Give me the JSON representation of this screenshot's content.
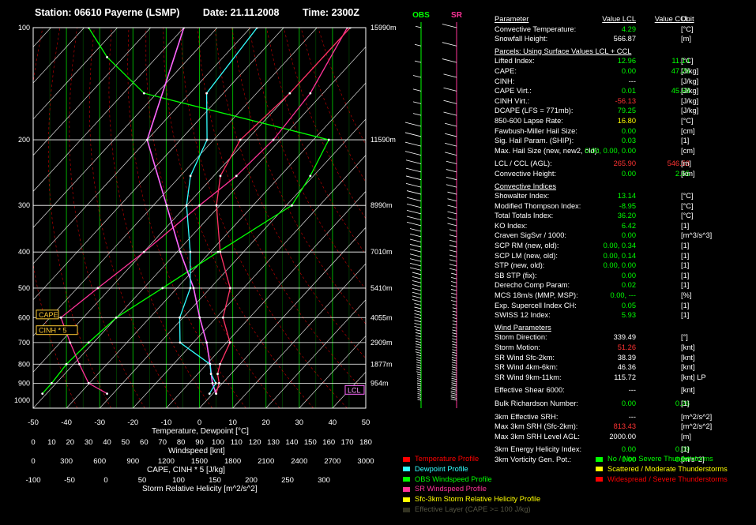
{
  "header": {
    "station": "Station: 06610 Payerne (LSMP)",
    "date": "Date: 21.11.2008",
    "time": "Time: 2300Z"
  },
  "colors": {
    "temperature": "#ff3366",
    "dewpoint": "#33ffff",
    "obs_wind": "#00ff00",
    "sr_wind": "#ff3399",
    "srh": "#ffff00",
    "isotherm": "#00aa00",
    "dry_adiabat": "#ff0000",
    "value_green": "#00ff00",
    "value_red": "#ff3333"
  },
  "chart_data": {
    "type": "skew-t",
    "pressure_levels": [
      100,
      200,
      300,
      400,
      500,
      600,
      700,
      800,
      900,
      1000
    ],
    "pressure_lines": [
      100,
      200,
      300,
      400,
      500,
      600,
      700,
      800,
      900
    ],
    "height_labels": [
      {
        "p": 100,
        "label": "15990m"
      },
      {
        "p": 200,
        "label": "11590m"
      },
      {
        "p": 300,
        "label": "8990m"
      },
      {
        "p": 400,
        "label": "7010m"
      },
      {
        "p": 500,
        "label": "5410m"
      },
      {
        "p": 600,
        "label": "4055m"
      },
      {
        "p": 700,
        "label": "2909m"
      },
      {
        "p": 800,
        "label": "1877m"
      },
      {
        "p": 900,
        "label": "954m"
      }
    ],
    "xlim": [
      -50,
      50
    ],
    "x_ticks": [
      -50,
      -40,
      -30,
      -20,
      -10,
      0,
      10,
      20,
      30,
      40,
      50
    ],
    "xlabel": "Temperature, Dewpoint [°C]",
    "temperature": [
      {
        "p": 960,
        "t": 1
      },
      {
        "p": 900,
        "t": -1
      },
      {
        "p": 850,
        "t": -4
      },
      {
        "p": 800,
        "t": -6
      },
      {
        "p": 700,
        "t": -9
      },
      {
        "p": 600,
        "t": -18
      },
      {
        "p": 500,
        "t": -24
      },
      {
        "p": 400,
        "t": -37
      },
      {
        "p": 300,
        "t": -51
      },
      {
        "p": 250,
        "t": -58
      },
      {
        "p": 200,
        "t": -62
      },
      {
        "p": 150,
        "t": -60
      },
      {
        "p": 100,
        "t": -60
      }
    ],
    "dewpoint": [
      {
        "p": 960,
        "t": -1
      },
      {
        "p": 900,
        "t": -2
      },
      {
        "p": 850,
        "t": -6
      },
      {
        "p": 800,
        "t": -9
      },
      {
        "p": 700,
        "t": -24
      },
      {
        "p": 600,
        "t": -31
      },
      {
        "p": 500,
        "t": -36
      },
      {
        "p": 400,
        "t": -46
      },
      {
        "p": 300,
        "t": -60
      },
      {
        "p": 250,
        "t": -67
      },
      {
        "p": 200,
        "t": -72
      },
      {
        "p": 150,
        "t": -85
      },
      {
        "p": 100,
        "t": -88
      }
    ],
    "parcel": [
      {
        "p": 960,
        "t": 1
      },
      {
        "p": 900,
        "t": -3
      },
      {
        "p": 800,
        "t": -9
      },
      {
        "p": 700,
        "t": -16
      },
      {
        "p": 600,
        "t": -25
      },
      {
        "p": 500,
        "t": -35
      },
      {
        "p": 400,
        "t": -49
      },
      {
        "p": 300,
        "t": -66
      },
      {
        "p": 200,
        "t": -90
      },
      {
        "p": 100,
        "t": -110
      }
    ],
    "obs_windspeed_knt": [
      {
        "p": 960,
        "v": 5
      },
      {
        "p": 900,
        "v": 10
      },
      {
        "p": 800,
        "v": 18
      },
      {
        "p": 700,
        "v": 30
      },
      {
        "p": 600,
        "v": 45
      },
      {
        "p": 500,
        "v": 70
      },
      {
        "p": 400,
        "v": 100
      },
      {
        "p": 300,
        "v": 140
      },
      {
        "p": 250,
        "v": 150
      },
      {
        "p": 200,
        "v": 160
      },
      {
        "p": 150,
        "v": 60
      },
      {
        "p": 120,
        "v": 40
      },
      {
        "p": 100,
        "v": 30
      }
    ],
    "sr_windspeed_knt": [
      {
        "p": 960,
        "v": 40
      },
      {
        "p": 900,
        "v": 30
      },
      {
        "p": 800,
        "v": 25
      },
      {
        "p": 700,
        "v": 20
      },
      {
        "p": 600,
        "v": 15
      },
      {
        "p": 500,
        "v": 35
      },
      {
        "p": 400,
        "v": 60
      },
      {
        "p": 300,
        "v": 90
      },
      {
        "p": 250,
        "v": 110
      },
      {
        "p": 200,
        "v": 130
      },
      {
        "p": 150,
        "v": 150
      },
      {
        "p": 100,
        "v": 170
      }
    ],
    "markers": [
      {
        "p": 590,
        "label": "CAPE"
      },
      {
        "p": 650,
        "label": "CINH * 5"
      },
      {
        "p": 940,
        "label": "LCL"
      }
    ],
    "lower_axes": [
      {
        "title": "Windspeed [knt]",
        "ticks": [
          "0",
          "10",
          "20",
          "30",
          "40",
          "50",
          "60",
          "70",
          "80",
          "90",
          "100",
          "110",
          "120",
          "130",
          "140",
          "150",
          "160",
          "170",
          "180"
        ]
      },
      {
        "title": "CAPE, CINH * 5 [J/kg]",
        "ticks": [
          "0",
          "300",
          "600",
          "900",
          "1200",
          "1500",
          "1800",
          "2100",
          "2400",
          "2700",
          "3000"
        ]
      },
      {
        "title": "Storm Relative Helicity [m^2/s^2]",
        "ticks": [
          "-100",
          "-50",
          "0",
          "50",
          "100",
          "150",
          "200",
          "250",
          "300"
        ]
      }
    ]
  },
  "wind_strip": {
    "obs_label": "OBS",
    "sr_label": "SR"
  },
  "params": {
    "header": {
      "label": "Parameter",
      "v1": "Value LCL",
      "v2": "Value CCL",
      "unit": "Unit"
    },
    "rows": [
      {
        "label": "Convective Temperature:",
        "v1": "4.29",
        "v2": "",
        "unit": "[°C]",
        "c1": "g"
      },
      {
        "label": "Snowfall Height:",
        "v1": "566.87",
        "v2": "",
        "unit": "[m]",
        "c1": "w"
      },
      {
        "section": "Parcels: Using Surface Values LCL + CCL"
      },
      {
        "label": "Lifted Index:",
        "v1": "12.96",
        "v2": "11.14",
        "unit": "[°C]",
        "c1": "g",
        "c2": "g"
      },
      {
        "label": "CAPE:",
        "v1": "0.00",
        "v2": "47.26",
        "unit": "[J/kg]",
        "c1": "g",
        "c2": "g"
      },
      {
        "label": "CINH:",
        "v1": "---",
        "v2": "",
        "unit": "[J/kg]",
        "c1": "w"
      },
      {
        "label": "CAPE Virt.:",
        "v1": "0.01",
        "v2": "45.68",
        "unit": "[J/kg]",
        "c1": "g",
        "c2": "g"
      },
      {
        "label": "CINH Virt.:",
        "v1": "-56.13",
        "v2": "",
        "unit": "[J/kg]",
        "c1": "r"
      },
      {
        "label": "DCAPE (LFS = 771mb):",
        "v1": "79.25",
        "v2": "",
        "unit": "[J/kg]",
        "c1": "g"
      },
      {
        "label": "850-600 Lapse Rate:",
        "v1": "16.80",
        "v2": "",
        "unit": "[°C]",
        "c1": "y"
      },
      {
        "label": "Fawbush-Miller Hail Size:",
        "v1": "0.00",
        "v2": "",
        "unit": "[cm]",
        "c1": "g"
      },
      {
        "label": "Sig. Hail Param. (SHIP):",
        "v1": "0.03",
        "v2": "",
        "unit": "[1]",
        "c1": "g"
      },
      {
        "label": "Max. Hail Size (new, new2, old):",
        "v1": "0.00,  0.00,  0.00",
        "v2": "",
        "unit": "[cm]",
        "c1": "g"
      },
      {
        "spacer": true
      },
      {
        "label": "LCL / CCL (AGL):",
        "v1": "265.90",
        "v2": "546.53",
        "unit": "[m]",
        "c1": "r",
        "c2": "r"
      },
      {
        "label": "Convective Height:",
        "v1": "0.00",
        "v2": "2.65",
        "unit": "[km]",
        "c1": "g",
        "c2": "g"
      },
      {
        "section": "Convective Indices"
      },
      {
        "label": "Showalter Index:",
        "v1": "13.14",
        "v2": "",
        "unit": "[°C]",
        "c1": "g"
      },
      {
        "label": "Modified Thompson Index:",
        "v1": "-8.95",
        "v2": "",
        "unit": "[°C]",
        "c1": "g"
      },
      {
        "label": "Total Totals Index:",
        "v1": "36.20",
        "v2": "",
        "unit": "[°C]",
        "c1": "g"
      },
      {
        "label": "KO Index:",
        "v1": "6.42",
        "v2": "",
        "unit": "[1]",
        "c1": "g"
      },
      {
        "label": "Craven SigSvr / 1000:",
        "v1": "0.00",
        "v2": "",
        "unit": "[m^3/s^3]",
        "c1": "g"
      },
      {
        "label": "SCP RM (new, old):",
        "v1": "0.00,  0.34",
        "v2": "",
        "unit": "[1]",
        "c1": "g"
      },
      {
        "label": "SCP LM (new, old):",
        "v1": "0.00,  0.14",
        "v2": "",
        "unit": "[1]",
        "c1": "g"
      },
      {
        "label": "STP (new, old):",
        "v1": "0.00,  0.00",
        "v2": "",
        "unit": "[1]",
        "c1": "g"
      },
      {
        "label": "SB STP (fix):",
        "v1": "0.00",
        "v2": "",
        "unit": "[1]",
        "c1": "g"
      },
      {
        "label": "Derecho Comp Param:",
        "v1": "0.02",
        "v2": "",
        "unit": "[1]",
        "c1": "g"
      },
      {
        "label": "MCS 18m/s (MMP, MSP):",
        "v1": "0.00,  ---",
        "v2": "",
        "unit": "[%]",
        "c1": "g"
      },
      {
        "label": "Exp. Supercell Index CH:",
        "v1": "0.05",
        "v2": "",
        "unit": "[1]",
        "c1": "g"
      },
      {
        "label": "SWISS 12 Index:",
        "v1": "5.93",
        "v2": "",
        "unit": "[1]",
        "c1": "g"
      },
      {
        "section": "Wind Parameters"
      },
      {
        "label": "Storm Direction:",
        "v1": "339.49",
        "v2": "",
        "unit": "[°]",
        "c1": "w"
      },
      {
        "label": "Storm Motion:",
        "v1": "51.26",
        "v2": "",
        "unit": "[knt]",
        "c1": "r"
      },
      {
        "label": "SR Wind Sfc-2km:",
        "v1": "38.39",
        "v2": "",
        "unit": "[knt]",
        "c1": "w"
      },
      {
        "label": "SR Wind 4km-6km:",
        "v1": "46.36",
        "v2": "",
        "unit": "[knt]",
        "c1": "w"
      },
      {
        "label": "SR Wind 9km-11km:",
        "v1": "115.72",
        "v2": "",
        "unit": "[knt] LP",
        "c1": "w"
      },
      {
        "spacer": true
      },
      {
        "label": "Effective Shear 6000:",
        "v1": "---",
        "v2": "",
        "unit": "[knt]",
        "c1": "w"
      },
      {
        "spacer": true
      },
      {
        "label": "Bulk Richardson Number:",
        "v1": "0.00",
        "v2": "0.26",
        "unit": "[1]",
        "c1": "g",
        "c2": "g"
      },
      {
        "spacer": true
      },
      {
        "label": "3km Effective SRH:",
        "v1": "---",
        "v2": "",
        "unit": "[m^2/s^2]",
        "c1": "w"
      },
      {
        "label": "Max 3km SRH (Sfc-2km):",
        "v1": "813.43",
        "v2": "",
        "unit": "[m^2/s^2]",
        "c1": "r"
      },
      {
        "label": "Max 3km SRH Level AGL:",
        "v1": "2000.00",
        "v2": "",
        "unit": "[m]",
        "c1": "w"
      },
      {
        "spacer": true
      },
      {
        "label": "3km Energy Helicity Index:",
        "v1": "0.00",
        "v2": "0.09",
        "unit": "[1]",
        "c1": "g",
        "c2": "g"
      },
      {
        "label": "3km Vorticity Gen. Pot.:",
        "v1": "0.00",
        "v2": "0.04",
        "unit": "[m/s^2]",
        "c1": "g",
        "c2": "g"
      }
    ]
  },
  "legend": {
    "left": [
      {
        "label": "Temperature Profile",
        "color": "#ff0000"
      },
      {
        "label": "Dewpoint Profile",
        "color": "#33ffff"
      },
      {
        "label": "OBS Windspeed Profile",
        "color": "#00ff00"
      },
      {
        "label": "SR Windspeed Profile",
        "color": "#ff3399"
      },
      {
        "label": "Sfc-3km Storm Relative Helicity Profile",
        "color": "#ffff00"
      },
      {
        "label": "Effective Layer (CAPE >= 100 J/kg)",
        "color": "#333322"
      }
    ],
    "right": [
      {
        "label": "No / Non Severe Thunderstorms",
        "color": "#00ff00"
      },
      {
        "label": "Scattered / Moderate Thunderstorms",
        "color": "#ffff00"
      },
      {
        "label": "Widespread / Severe Thunderstorms",
        "color": "#ff0000"
      }
    ]
  }
}
